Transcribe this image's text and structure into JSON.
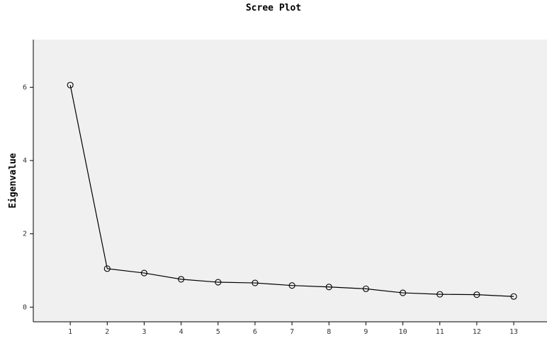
{
  "chart_data": {
    "type": "line",
    "title": "Scree Plot",
    "xlabel": "",
    "ylabel": "Eigenvalue",
    "x": [
      1,
      2,
      3,
      4,
      5,
      6,
      7,
      8,
      9,
      10,
      11,
      12,
      13
    ],
    "x_tick_labels": [
      "1",
      "2",
      "3",
      "4",
      "5",
      "6",
      "7",
      "8",
      "9",
      "10",
      "11",
      "12",
      "13"
    ],
    "y_tick_labels": [
      "0",
      "2",
      "4",
      "6"
    ],
    "y_ticks": [
      0,
      2,
      4,
      6
    ],
    "values": [
      6.06,
      1.05,
      0.93,
      0.76,
      0.68,
      0.66,
      0.59,
      0.55,
      0.5,
      0.39,
      0.35,
      0.34,
      0.29
    ],
    "xlim": [
      0,
      13.9
    ],
    "ylim": [
      -0.4,
      7.3
    ],
    "grid": false,
    "marker": "open-circle",
    "colors": {
      "plot_background": "#f0f0f0",
      "line": "#000000",
      "axis": "#000000"
    }
  }
}
